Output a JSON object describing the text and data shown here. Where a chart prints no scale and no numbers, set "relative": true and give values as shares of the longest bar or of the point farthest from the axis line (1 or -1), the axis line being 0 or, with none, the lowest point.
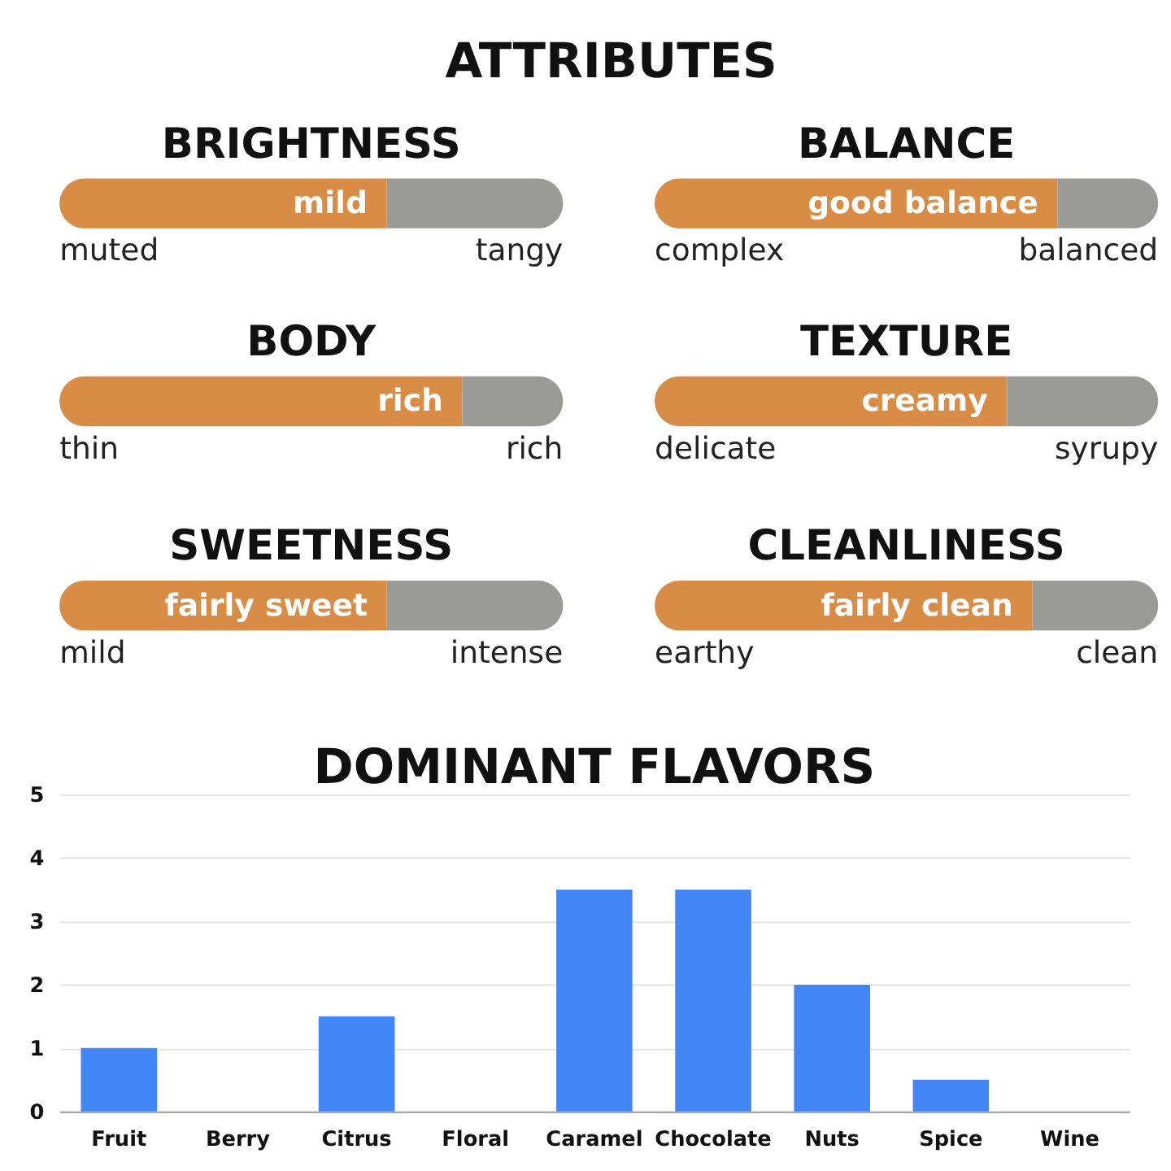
{
  "chart_data": [
    {
      "type": "other",
      "title": "ATTRIBUTES"
    },
    {
      "type": "bar",
      "title": "BRIGHTNESS",
      "orientation": "horizontal",
      "stacked": true,
      "relative": true,
      "categories": [
        null
      ],
      "series": [
        {
          "color": "#d98c46",
          "values": [
            0.65
          ]
        },
        {
          "color": "#9a9b97",
          "values": [
            0.35
          ]
        }
      ],
      "annotations": [
        {
          "text": "mild",
          "x": 0.65
        },
        "muted",
        "tangy"
      ]
    },
    {
      "type": "bar",
      "title": "BALANCE",
      "orientation": "horizontal",
      "stacked": true,
      "relative": true,
      "categories": [
        null
      ],
      "series": [
        {
          "color": "#d98c46",
          "values": [
            0.8
          ]
        },
        {
          "color": "#9a9b97",
          "values": [
            0.2
          ]
        }
      ],
      "annotations": [
        {
          "text": "good balance",
          "x": 0.8
        },
        "complex",
        "balanced"
      ]
    },
    {
      "type": "bar",
      "title": "BODY",
      "orientation": "horizontal",
      "stacked": true,
      "relative": true,
      "categories": [
        null
      ],
      "series": [
        {
          "color": "#d98c46",
          "values": [
            0.8
          ]
        },
        {
          "color": "#9a9b97",
          "values": [
            0.2
          ]
        }
      ],
      "annotations": [
        {
          "text": "rich",
          "x": 0.8
        },
        "thin",
        "rich"
      ]
    },
    {
      "type": "bar",
      "title": "TEXTURE",
      "orientation": "horizontal",
      "stacked": true,
      "relative": true,
      "categories": [
        null
      ],
      "series": [
        {
          "color": "#d98c46",
          "values": [
            0.7
          ]
        },
        {
          "color": "#9a9b97",
          "values": [
            0.3
          ]
        }
      ],
      "annotations": [
        {
          "text": "creamy",
          "x": 0.7
        },
        "delicate",
        "syrupy"
      ]
    },
    {
      "type": "bar",
      "title": "SWEETNESS",
      "orientation": "horizontal",
      "stacked": true,
      "relative": true,
      "categories": [
        null
      ],
      "series": [
        {
          "color": "#d98c46",
          "values": [
            0.65
          ]
        },
        {
          "color": "#9a9b97",
          "values": [
            0.35
          ]
        }
      ],
      "annotations": [
        {
          "text": "fairly sweet",
          "x": 0.65
        },
        "mild",
        "intense"
      ]
    },
    {
      "type": "bar",
      "title": "CLEANLINESS",
      "orientation": "horizontal",
      "stacked": true,
      "relative": true,
      "categories": [
        null
      ],
      "series": [
        {
          "color": "#d98c46",
          "values": [
            0.75
          ]
        },
        {
          "color": "#9a9b97",
          "values": [
            0.25
          ]
        }
      ],
      "annotations": [
        {
          "text": "fairly clean",
          "x": 0.75
        },
        "earthy",
        "clean"
      ]
    },
    {
      "type": "bar",
      "title": "DOMINANT FLAVORS",
      "categories": [
        "Fruit",
        "Berry",
        "Citrus",
        "Floral",
        "Caramel",
        "Chocolate",
        "Nuts",
        "Spice",
        "Wine"
      ],
      "values": [
        1,
        0,
        1.5,
        0,
        3.5,
        3.5,
        2,
        0.5,
        0
      ],
      "color": "#4285f4",
      "ylim": [
        0,
        5
      ],
      "yticks": [
        0,
        1,
        2,
        3,
        4,
        5
      ],
      "grid": "y"
    }
  ]
}
